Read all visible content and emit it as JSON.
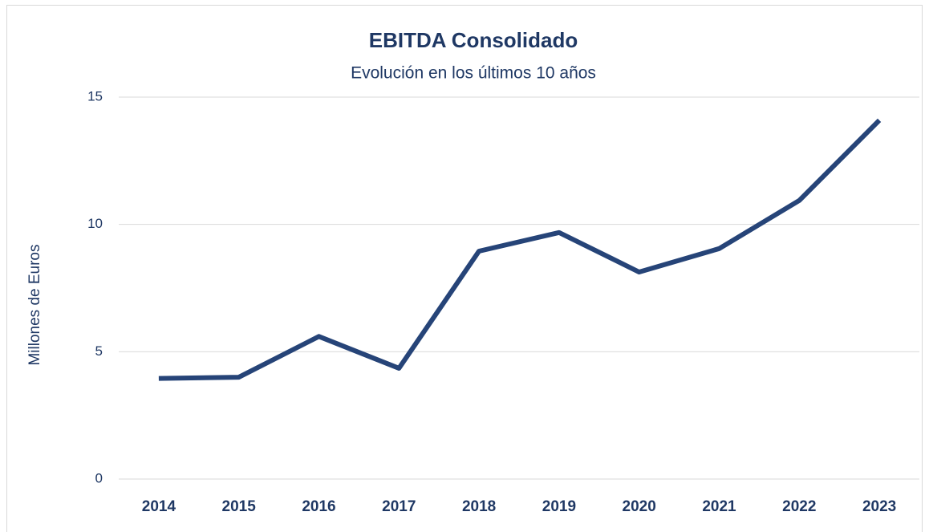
{
  "chart_data": {
    "type": "line",
    "title": "EBITDA Consolidado",
    "subtitle": "Evolución en los últimos 10 años",
    "y_label": "Millones de Euros",
    "categories": [
      "2014",
      "2015",
      "2016",
      "2017",
      "2018",
      "2019",
      "2020",
      "2021",
      "2022",
      "2023"
    ],
    "series": [
      {
        "name": "EBITDA",
        "color": "#264478",
        "values": [
          3.95,
          4.0,
          5.6,
          4.35,
          8.95,
          9.68,
          8.13,
          9.05,
          10.94,
          14.09
        ]
      }
    ],
    "ylim": [
      0,
      15
    ],
    "yticks": [
      0,
      5,
      10,
      15
    ],
    "grid": true
  }
}
